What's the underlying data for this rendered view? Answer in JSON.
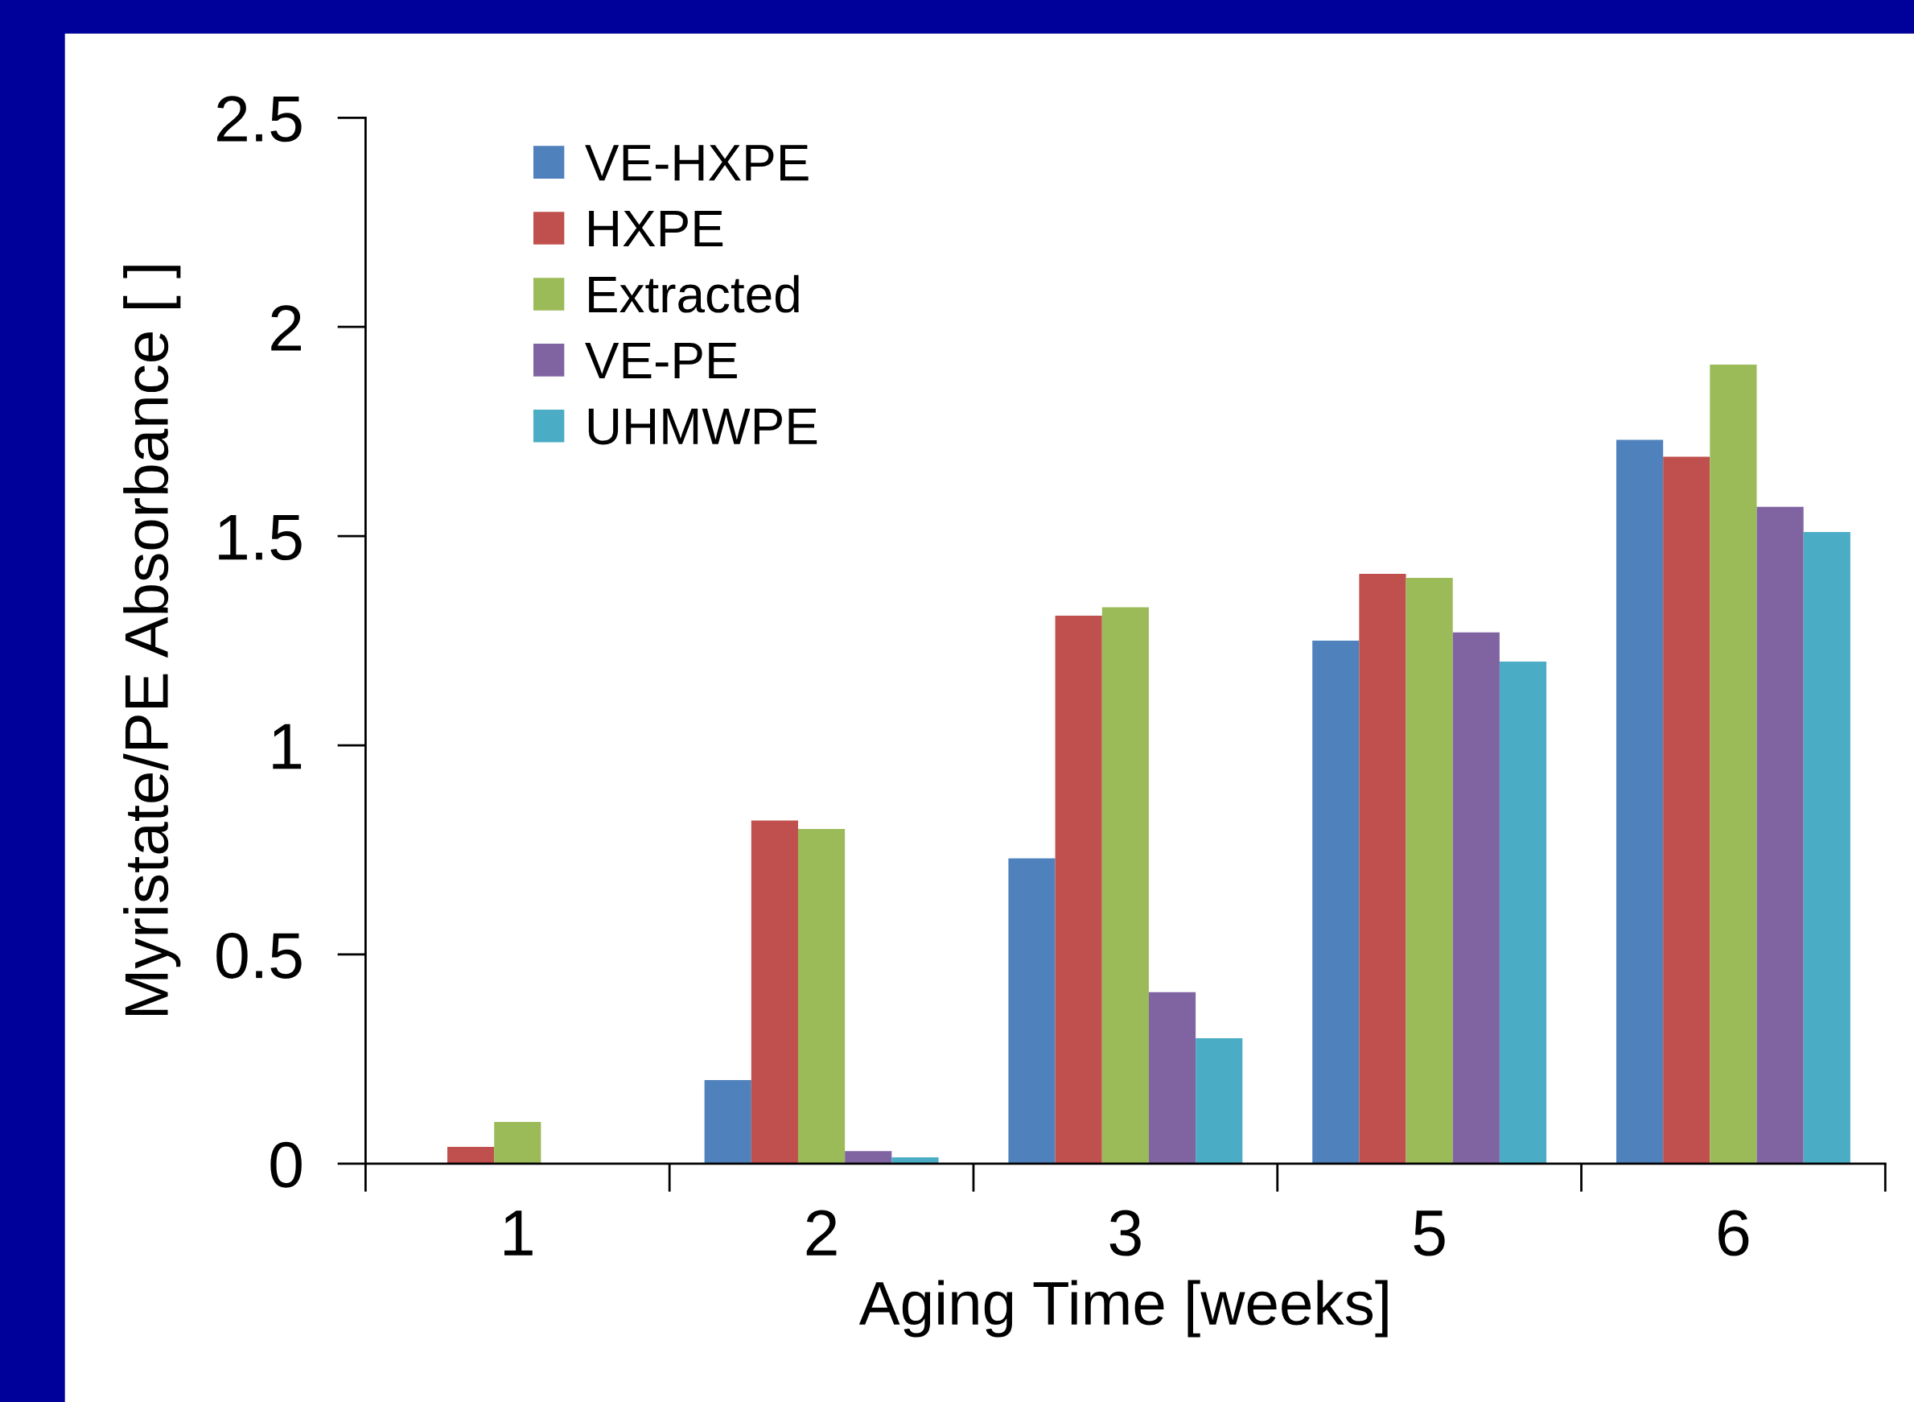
{
  "chart_data": {
    "type": "bar",
    "xlabel": "Aging Time [weeks]",
    "ylabel": "Myristate/PE Absorbance [ ]",
    "categories": [
      "1",
      "2",
      "3",
      "5",
      "6"
    ],
    "series": [
      {
        "name": "VE-HXPE",
        "color": "#4f81bd",
        "values": [
          null,
          0.2,
          0.73,
          1.25,
          1.73
        ]
      },
      {
        "name": "HXPE",
        "color": "#c0504d",
        "values": [
          0.04,
          0.82,
          1.31,
          1.41,
          1.69
        ]
      },
      {
        "name": "Extracted",
        "color": "#9bbb59",
        "values": [
          0.1,
          0.8,
          1.33,
          1.4,
          1.91
        ]
      },
      {
        "name": "VE-PE",
        "color": "#8064a2",
        "values": [
          null,
          0.03,
          0.41,
          1.27,
          1.57
        ]
      },
      {
        "name": "UHMWPE",
        "color": "#4bacc6",
        "values": [
          null,
          0.015,
          0.3,
          1.2,
          1.51
        ]
      }
    ],
    "ylim": [
      0,
      2.5
    ],
    "yticks": [
      0,
      0.5,
      1,
      1.5,
      2,
      2.5
    ],
    "grid": false,
    "legend": "top left"
  }
}
